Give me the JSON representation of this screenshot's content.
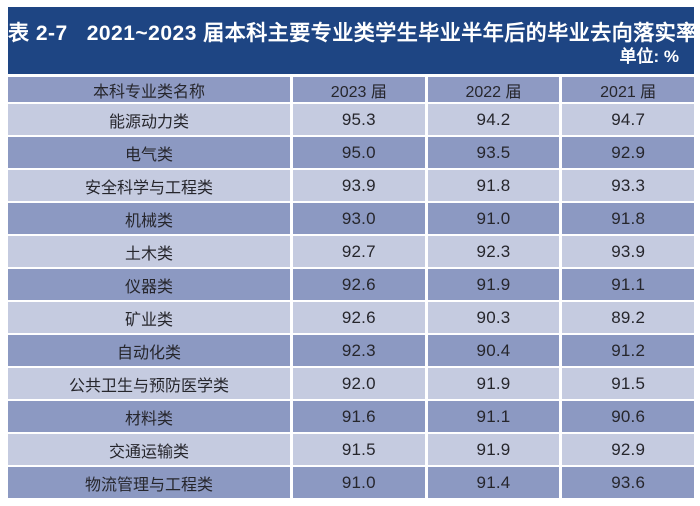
{
  "title": "表 2-7   2021~2023 届本科主要专业类学生毕业半年后的毕业去向落实率",
  "unit_label": "单位: %",
  "table": {
    "columns": [
      "本科专业类名称",
      "2023 届",
      "2022 届",
      "2021 届"
    ],
    "rows": [
      [
        "能源动力类",
        "95.3",
        "94.2",
        "94.7"
      ],
      [
        "电气类",
        "95.0",
        "93.5",
        "92.9"
      ],
      [
        "安全科学与工程类",
        "93.9",
        "91.8",
        "93.3"
      ],
      [
        "机械类",
        "93.0",
        "91.0",
        "91.8"
      ],
      [
        "土木类",
        "92.7",
        "92.3",
        "93.9"
      ],
      [
        "仪器类",
        "92.6",
        "91.9",
        "91.1"
      ],
      [
        "矿业类",
        "92.6",
        "90.3",
        "89.2"
      ],
      [
        "自动化类",
        "92.3",
        "90.4",
        "91.2"
      ],
      [
        "公共卫生与预防医学类",
        "92.0",
        "91.9",
        "91.5"
      ],
      [
        "材料类",
        "91.6",
        "91.1",
        "90.6"
      ],
      [
        "交通运输类",
        "91.5",
        "91.9",
        "92.9"
      ],
      [
        "物流管理与工程类",
        "91.0",
        "91.4",
        "93.6"
      ]
    ]
  },
  "colors": {
    "title_bar_bg": "#1e4583",
    "title_text": "#ffffff",
    "header_bg": "#8e9ac3",
    "row_light": "#c5cbe0",
    "row_dark": "#8c99c2",
    "cell_text": "#26262c",
    "page_bg": "#ffffff"
  }
}
